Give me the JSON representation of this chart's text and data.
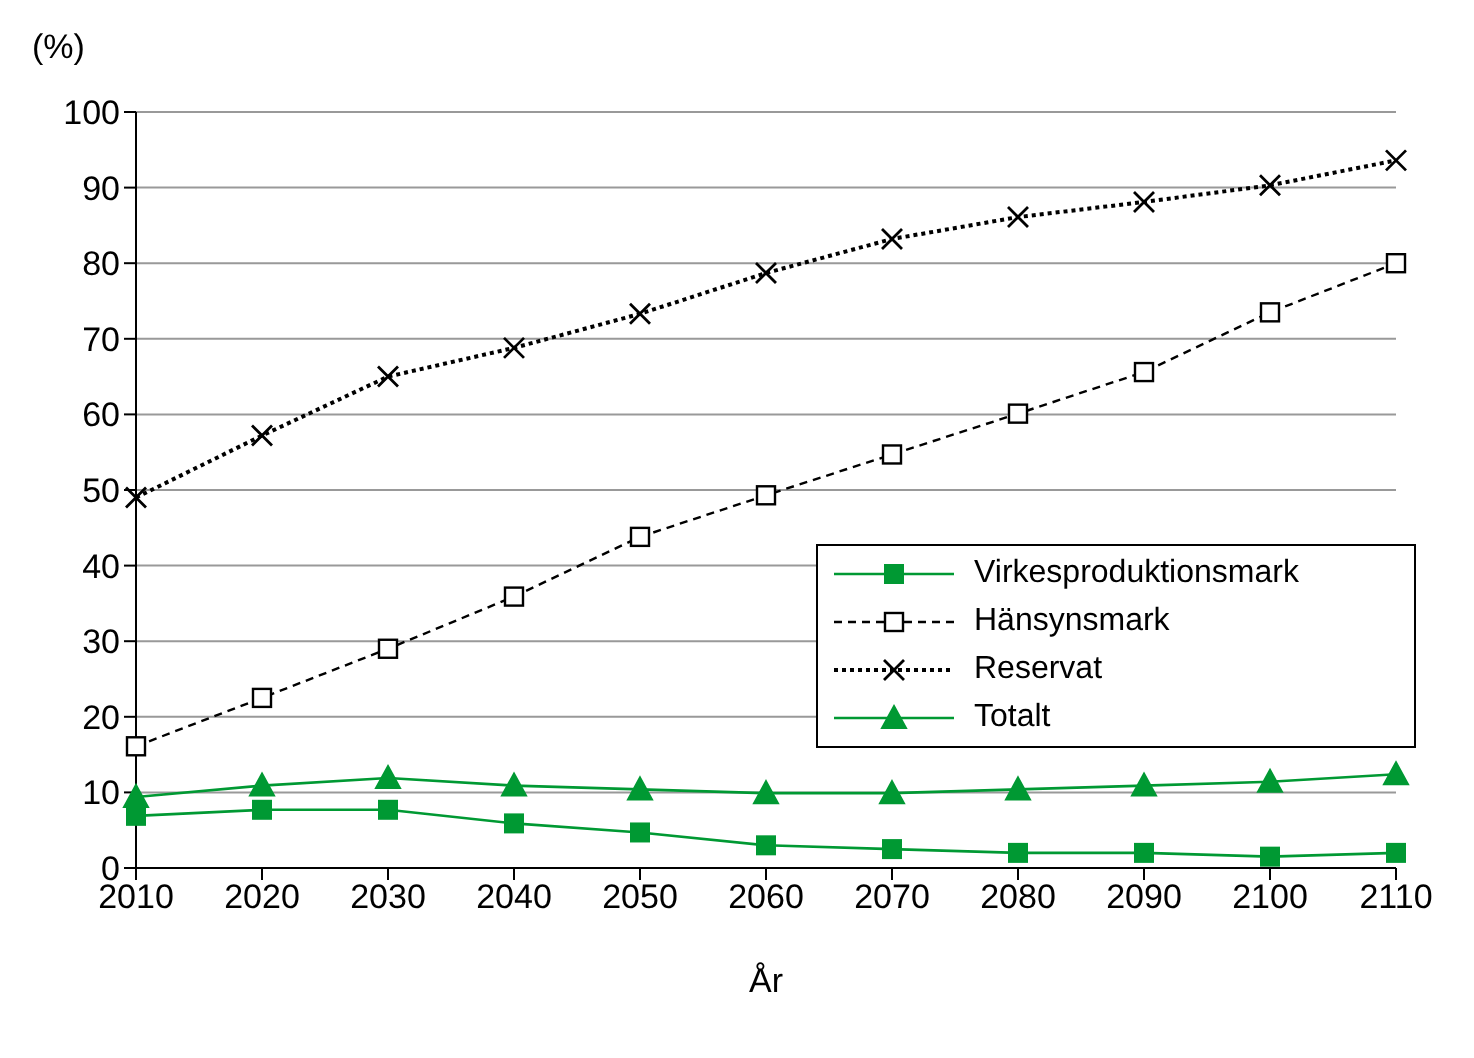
{
  "chart_data": {
    "type": "line",
    "xlabel": "År",
    "ylabel": "(%)",
    "categories": [
      "2010",
      "2020",
      "2030",
      "2040",
      "2050",
      "2060",
      "2070",
      "2080",
      "2090",
      "2100",
      "2110"
    ],
    "series": [
      {
        "name": "Virkesproduktionsmark",
        "color": "#009933",
        "marker": "square",
        "line_style": "solid",
        "values": [
          6.9,
          7.7,
          7.7,
          5.9,
          4.7,
          3,
          2.5,
          2,
          2,
          1.5,
          2
        ]
      },
      {
        "name": "Hänsynsmark",
        "color": "#000000",
        "marker": "square_open",
        "line_style": "dashed",
        "values": [
          16.1,
          22.5,
          29,
          35.9,
          43.8,
          49.3,
          54.7,
          60.1,
          65.6,
          73.5,
          80
        ]
      },
      {
        "name": "Reservat",
        "color": "#000000",
        "marker": "cross",
        "line_style": "dotted",
        "values": [
          49,
          57.2,
          65,
          68.8,
          73.3,
          78.7,
          83.2,
          86.1,
          88.1,
          90.3,
          93.6
        ]
      },
      {
        "name": "Totalt",
        "color": "#009933",
        "marker": "triangle",
        "line_style": "solid",
        "values": [
          9.4,
          10.9,
          11.9,
          10.9,
          10.4,
          9.9,
          9.9,
          10.4,
          10.9,
          11.4,
          12.4
        ]
      }
    ],
    "ylim": [
      0,
      100
    ],
    "yticks": [
      0,
      10,
      20,
      30,
      40,
      50,
      60,
      70,
      80,
      90,
      100
    ],
    "grid": "y",
    "legend": "bottom right"
  }
}
